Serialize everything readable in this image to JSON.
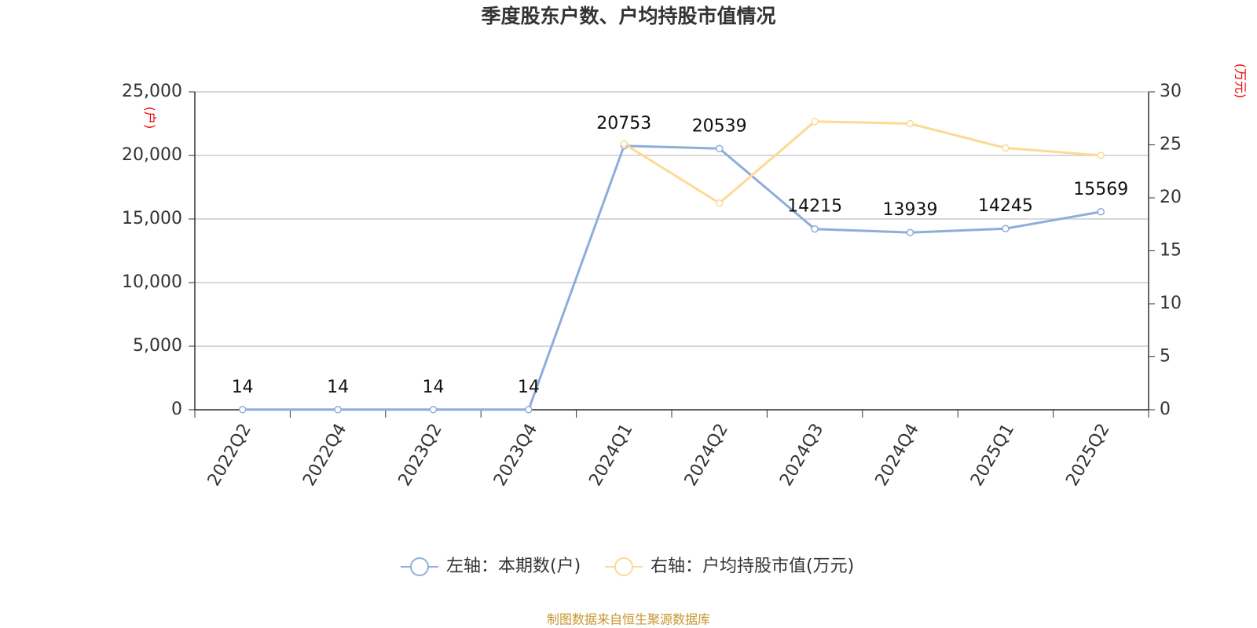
{
  "chart_data": {
    "type": "line",
    "title": "季度股东户数、户均持股市值情况",
    "y_label": "(户)",
    "y2_label": "(万元)",
    "source": "制图数据来自恒生聚源数据库",
    "categories": [
      "2022Q2",
      "2022Q4",
      "2023Q2",
      "2023Q4",
      "2024Q1",
      "2024Q2",
      "2024Q3",
      "2024Q4",
      "2025Q1",
      "2025Q2"
    ],
    "series": [
      {
        "name": "左轴：本期数(户)",
        "color": "#8eadda",
        "values": [
          14,
          14,
          14,
          14,
          20753,
          20539,
          14215,
          13939,
          14245,
          15569
        ],
        "data_labels": true
      },
      {
        "name": "右轴：户均持股市值(万元)",
        "color": "#fdd996",
        "axis": "y2",
        "values": [
          null,
          null,
          null,
          null,
          25.1,
          19.5,
          27.2,
          27.0,
          24.7,
          24.0
        ],
        "data_labels": false
      }
    ],
    "ylim": [
      0,
      25000
    ],
    "yticks": [
      0,
      {
        "value": 5000,
        "label": "5,000"
      },
      {
        "value": 10000,
        "label": "10,000"
      },
      {
        "value": 15000,
        "label": "15,000"
      },
      {
        "value": 20000,
        "label": "20,000"
      },
      {
        "value": 25000,
        "label": "25,000"
      }
    ],
    "y2lim": [
      0,
      30
    ],
    "y2ticks": [
      0,
      5,
      10,
      15,
      20,
      25,
      30
    ],
    "grid": true,
    "legend": "bottom"
  }
}
